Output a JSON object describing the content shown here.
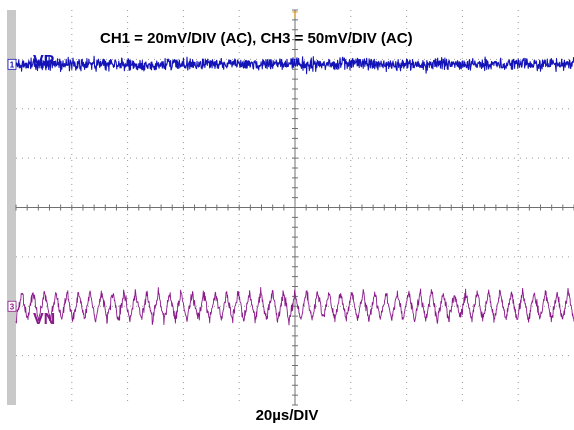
{
  "chart_data": {
    "type": "line",
    "title": "CH1 = 20mV/DIV (AC), CH3 = 50mV/DIV (AC)",
    "xlabel": "20µs/DIV",
    "ylabel": "",
    "grid": true,
    "divisions": {
      "x": 10,
      "y": 8
    },
    "x_per_div_us": 20,
    "xlim_us": [
      0,
      200
    ],
    "trigger_marker": "T",
    "series": [
      {
        "name": "VP",
        "channel_marker": "1",
        "scale_mV_per_div": 20,
        "coupling": "AC",
        "color": "#1313b8",
        "ground_level_div": 2.9,
        "peak_to_peak_div": 0.6,
        "description_values": {
          "mean_mV": 0,
          "pk_pk_mV": 12
        }
      },
      {
        "name": "VN",
        "channel_marker": "3",
        "scale_mV_per_div": 50,
        "coupling": "AC",
        "color": "#8a1a8a",
        "ground_level_div": -2.0,
        "peak_to_peak_div": 0.75,
        "ripple_cycles": 49,
        "ripple_period_us": 4.1,
        "description_values": {
          "mean_mV": 0,
          "pk_pk_mV": 37
        }
      }
    ]
  }
}
